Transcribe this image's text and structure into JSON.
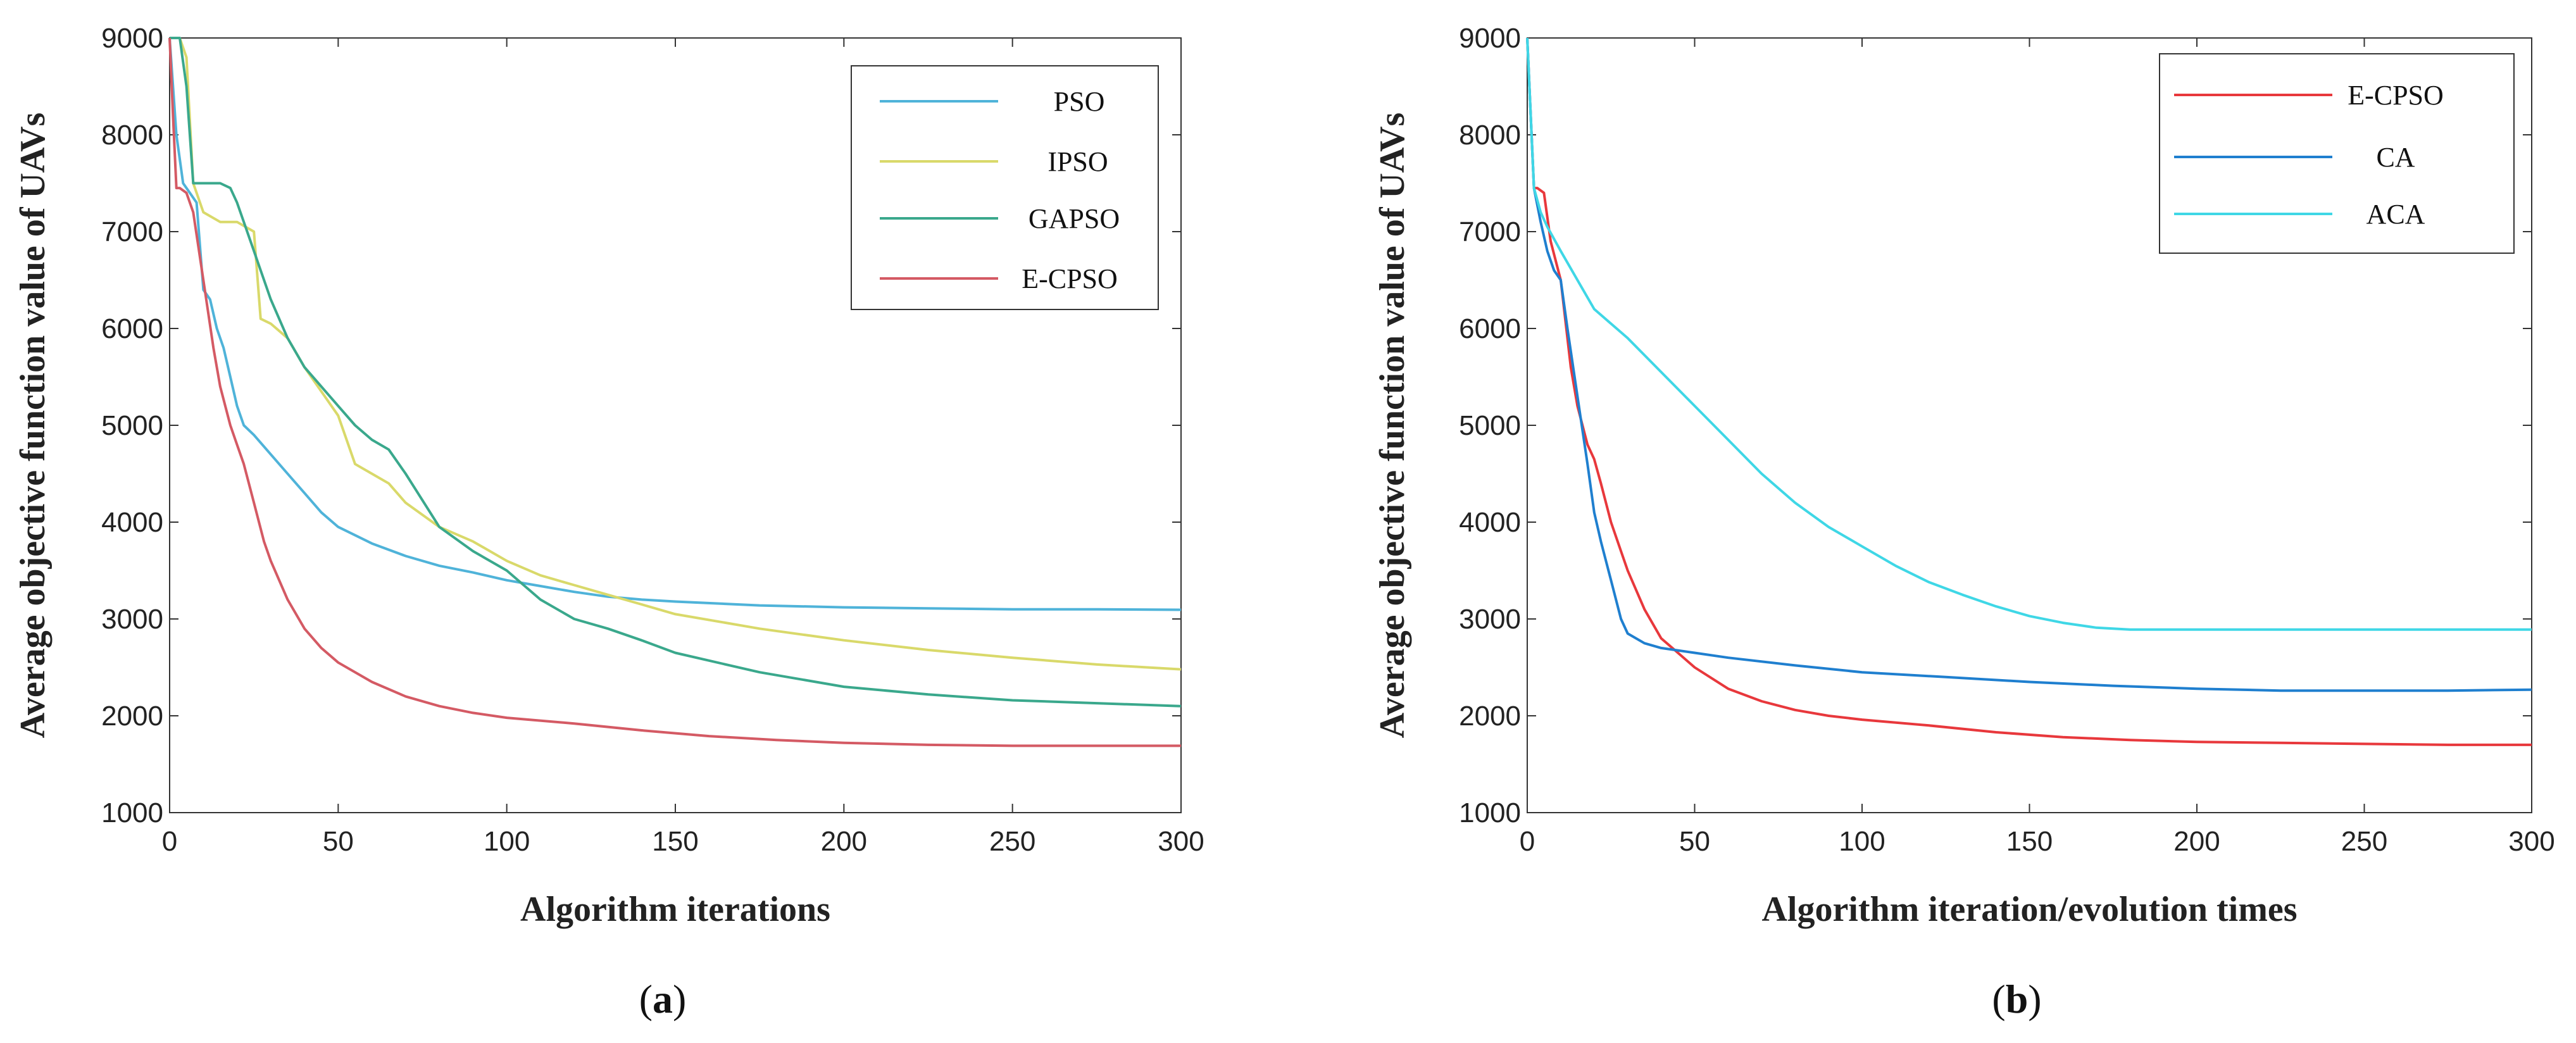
{
  "chart_data": [
    {
      "type": "line",
      "panel": "a",
      "caption": {
        "open": "(",
        "letter": "a",
        "close": ")"
      },
      "title": "",
      "xlabel": "Algorithm iterations",
      "ylabel": "Average objective function value of UAVs",
      "xlim": [
        0,
        300
      ],
      "ylim": [
        1000,
        9000
      ],
      "xticks": [
        0,
        50,
        100,
        150,
        200,
        250,
        300
      ],
      "yticks": [
        1000,
        2000,
        3000,
        4000,
        5000,
        6000,
        7000,
        8000,
        9000
      ],
      "legend_position": "top-right",
      "series": [
        {
          "name": "PSO",
          "color": "#4fb3d9",
          "x": [
            0,
            2,
            4,
            6,
            8,
            10,
            12,
            14,
            16,
            18,
            20,
            22,
            25,
            30,
            35,
            40,
            45,
            50,
            60,
            70,
            80,
            90,
            100,
            110,
            120,
            130,
            140,
            150,
            175,
            200,
            225,
            250,
            275,
            300
          ],
          "y": [
            9000,
            8000,
            7500,
            7400,
            7300,
            6400,
            6300,
            6000,
            5800,
            5500,
            5200,
            5000,
            4900,
            4700,
            4500,
            4300,
            4100,
            3950,
            3780,
            3650,
            3550,
            3480,
            3400,
            3340,
            3280,
            3230,
            3200,
            3180,
            3140,
            3120,
            3110,
            3100,
            3100,
            3095
          ]
        },
        {
          "name": "IPSO",
          "color": "#d9d96a",
          "x": [
            0,
            3,
            5,
            7,
            10,
            15,
            20,
            25,
            27,
            30,
            35,
            40,
            50,
            55,
            60,
            65,
            70,
            80,
            90,
            100,
            110,
            120,
            130,
            140,
            150,
            175,
            200,
            225,
            250,
            275,
            300
          ],
          "y": [
            9000,
            9000,
            8800,
            7500,
            7200,
            7100,
            7100,
            7000,
            6100,
            6050,
            5900,
            5600,
            5100,
            4600,
            4500,
            4400,
            4200,
            3950,
            3800,
            3600,
            3450,
            3350,
            3250,
            3150,
            3050,
            2900,
            2780,
            2680,
            2600,
            2530,
            2480
          ]
        },
        {
          "name": "GAPSO",
          "color": "#3aa88c",
          "x": [
            0,
            3,
            5,
            7,
            10,
            15,
            18,
            20,
            25,
            30,
            35,
            40,
            50,
            55,
            60,
            65,
            70,
            80,
            90,
            100,
            110,
            120,
            130,
            140,
            150,
            175,
            200,
            225,
            250,
            275,
            300
          ],
          "y": [
            9000,
            9000,
            8500,
            7500,
            7500,
            7500,
            7450,
            7300,
            6800,
            6300,
            5900,
            5600,
            5200,
            5000,
            4850,
            4750,
            4500,
            3950,
            3700,
            3500,
            3200,
            3000,
            2900,
            2780,
            2650,
            2450,
            2300,
            2220,
            2160,
            2130,
            2100
          ]
        },
        {
          "name": "E-CPSO",
          "color": "#d45a64",
          "x": [
            0,
            1,
            2,
            3,
            5,
            7,
            10,
            13,
            15,
            18,
            20,
            22,
            25,
            28,
            30,
            35,
            40,
            45,
            50,
            60,
            70,
            80,
            90,
            100,
            120,
            140,
            160,
            180,
            200,
            225,
            250,
            275,
            300
          ],
          "y": [
            9000,
            8200,
            7450,
            7450,
            7400,
            7200,
            6500,
            5800,
            5400,
            5000,
            4800,
            4600,
            4200,
            3800,
            3600,
            3200,
            2900,
            2700,
            2550,
            2350,
            2200,
            2100,
            2030,
            1980,
            1920,
            1850,
            1790,
            1750,
            1720,
            1700,
            1690,
            1690,
            1690
          ]
        }
      ]
    },
    {
      "type": "line",
      "panel": "b",
      "caption": {
        "open": "(",
        "letter": "b",
        "close": ")"
      },
      "title": "",
      "xlabel": "Algorithm iteration/evolution times",
      "ylabel": "Average objective function value of UAVs",
      "xlim": [
        0,
        300
      ],
      "ylim": [
        1000,
        9000
      ],
      "xticks": [
        0,
        50,
        100,
        150,
        200,
        250,
        300
      ],
      "yticks": [
        1000,
        2000,
        3000,
        4000,
        5000,
        6000,
        7000,
        8000,
        9000
      ],
      "legend_position": "top-right",
      "series": [
        {
          "name": "E-CPSO",
          "color": "#e8383c",
          "x": [
            0,
            2,
            3,
            5,
            7,
            10,
            13,
            15,
            18,
            20,
            22,
            25,
            28,
            30,
            35,
            40,
            45,
            50,
            60,
            70,
            80,
            90,
            100,
            120,
            140,
            160,
            180,
            200,
            225,
            250,
            275,
            300
          ],
          "y": [
            9000,
            7450,
            7450,
            7400,
            6900,
            6500,
            5600,
            5200,
            4800,
            4650,
            4400,
            4000,
            3700,
            3500,
            3100,
            2800,
            2650,
            2500,
            2280,
            2150,
            2060,
            2000,
            1960,
            1900,
            1830,
            1780,
            1750,
            1730,
            1720,
            1710,
            1700,
            1700
          ]
        },
        {
          "name": "CA",
          "color": "#1f7fcf",
          "x": [
            0,
            2,
            4,
            6,
            8,
            10,
            12,
            15,
            18,
            20,
            22,
            25,
            28,
            30,
            35,
            40,
            50,
            60,
            80,
            100,
            125,
            150,
            175,
            200,
            225,
            250,
            275,
            300
          ],
          "y": [
            9000,
            7450,
            7100,
            6800,
            6600,
            6500,
            6000,
            5300,
            4600,
            4100,
            3800,
            3400,
            3000,
            2850,
            2750,
            2700,
            2650,
            2600,
            2520,
            2450,
            2400,
            2350,
            2310,
            2280,
            2260,
            2260,
            2260,
            2270
          ]
        },
        {
          "name": "ACA",
          "color": "#3fd7e6",
          "x": [
            0,
            2,
            4,
            6,
            10,
            15,
            20,
            25,
            30,
            40,
            50,
            60,
            70,
            80,
            90,
            100,
            110,
            120,
            130,
            140,
            150,
            160,
            170,
            180,
            190,
            200,
            250,
            300
          ],
          "y": [
            9000,
            7450,
            7200,
            7050,
            6800,
            6500,
            6200,
            6050,
            5900,
            5550,
            5200,
            4850,
            4500,
            4200,
            3950,
            3750,
            3550,
            3380,
            3250,
            3130,
            3030,
            2960,
            2910,
            2890,
            2890,
            2890,
            2890,
            2890
          ]
        }
      ]
    }
  ]
}
